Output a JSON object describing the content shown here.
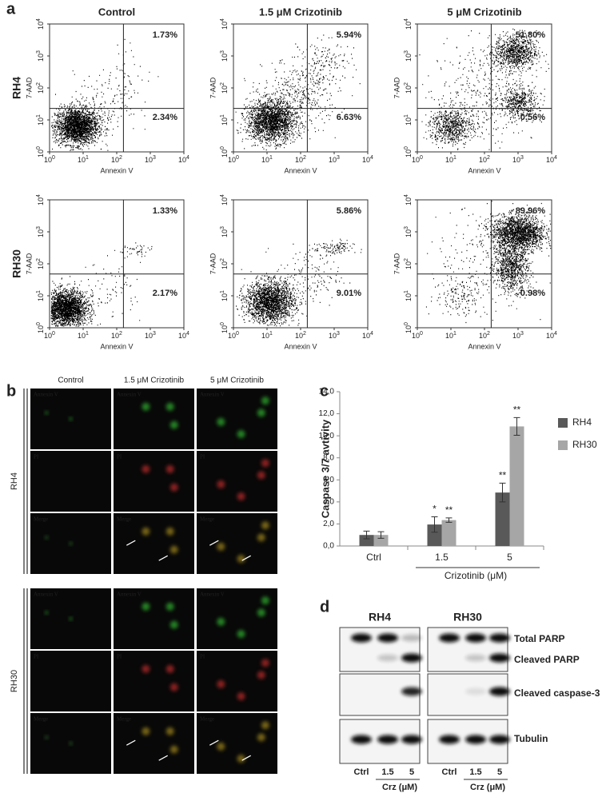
{
  "panel_labels": [
    "a",
    "b",
    "c",
    "d"
  ],
  "panel_a": {
    "columns": [
      "Control",
      "1.5 μM Crizotinib",
      "5 μM Crizotinib"
    ],
    "rows": [
      "RH4",
      "RH30"
    ],
    "x_axis_label": "Annexin V",
    "y_axis_label": "7-AAD",
    "axis_ticks": [
      {
        "base": "10",
        "exp": "0"
      },
      {
        "base": "10",
        "exp": "1"
      },
      {
        "base": "10",
        "exp": "2"
      },
      {
        "base": "10",
        "exp": "3"
      },
      {
        "base": "10",
        "exp": "4"
      }
    ],
    "quadrants": [
      [
        {
          "upper_right": "1.73%",
          "lower_right": "2.34%"
        },
        {
          "upper_right": "5.94%",
          "lower_right": "6.63%"
        },
        {
          "upper_right": "51.80%",
          "lower_right": "0.56%"
        }
      ],
      [
        {
          "upper_right": "1.33%",
          "lower_right": "2.17%"
        },
        {
          "upper_right": "5.86%",
          "lower_right": "9.01%"
        },
        {
          "upper_right": "89.96%",
          "lower_right": "0.98%"
        }
      ]
    ]
  },
  "panel_b": {
    "columns": [
      "Control",
      "1.5 μM Crizotinib",
      "5 μM Crizotinib"
    ],
    "rows": [
      "RH4",
      "RH30"
    ],
    "channels": [
      "Annexin V",
      "PI",
      "Merge"
    ]
  },
  "chart_data": {
    "type": "bar",
    "y_axis_label": "Caspase 3/7 avtivity",
    "x_axis_label": "Crizotinib (μM)",
    "categories": [
      "Ctrl",
      "1.5",
      "5"
    ],
    "ylim": [
      0,
      14
    ],
    "yticks": [
      {
        "value": 0,
        "label": "0,0"
      },
      {
        "value": 2,
        "label": "2,0"
      },
      {
        "value": 4,
        "label": "4,0"
      },
      {
        "value": 6,
        "label": "6,0"
      },
      {
        "value": 8,
        "label": "8,0"
      },
      {
        "value": 10,
        "label": "10,0"
      },
      {
        "value": 12,
        "label": "12,0"
      },
      {
        "value": 14,
        "label": "14,0"
      }
    ],
    "series": [
      {
        "name": "RH4",
        "color": "#595959",
        "values": [
          1.0,
          1.95,
          4.85
        ],
        "errors": [
          0.35,
          0.7,
          0.85
        ],
        "annotations": [
          null,
          "*",
          "**"
        ]
      },
      {
        "name": "RH30",
        "color": "#a6a6a6",
        "values": [
          1.0,
          2.35,
          10.85
        ],
        "errors": [
          0.3,
          0.2,
          0.8
        ],
        "annotations": [
          null,
          "**",
          "**"
        ]
      }
    ],
    "legend": "right"
  },
  "panel_d": {
    "groups": [
      "RH4",
      "RH30"
    ],
    "proteins": [
      "Total PARP",
      "Cleaved PARP",
      "Cleaved caspase-3",
      "Tubulin"
    ],
    "lanes": [
      "Ctrl",
      "1.5",
      "5"
    ],
    "treatment_label": "Crz (μM)"
  }
}
